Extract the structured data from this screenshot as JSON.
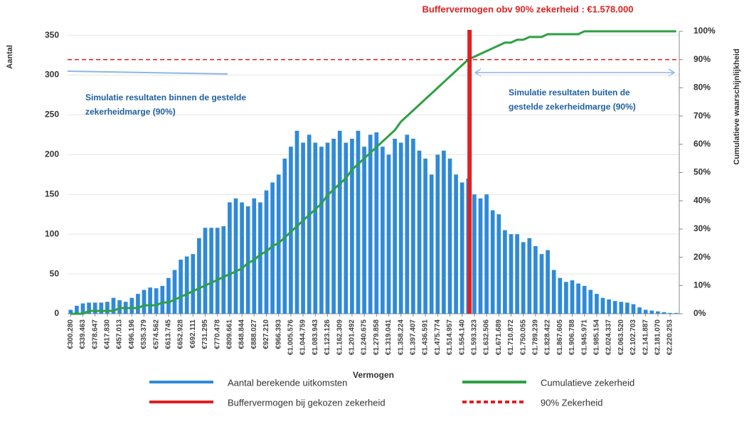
{
  "chart_data": {
    "type": "bar",
    "title": "Buffervermogen obv 90% zekerheid : €1.578.000",
    "x_label": "Vermogen",
    "y_label": "Aantal",
    "y2_label": "Cumulatieve waarschijnlijkheid",
    "categories": [
      "€300.280",
      null,
      "€339.463",
      null,
      "€378.647",
      null,
      "€417.830",
      null,
      "€457.013",
      null,
      "€496.196",
      null,
      "€535.379",
      null,
      "€574.562",
      null,
      "€613.745",
      null,
      "€652.928",
      null,
      "€692.111",
      null,
      "€731.295",
      null,
      "€770.478",
      null,
      "€809.661",
      null,
      "€848.844",
      null,
      "€888.027",
      null,
      "€927.210",
      null,
      "€966.393",
      null,
      "€1.005.576",
      null,
      "€1.044.759",
      null,
      "€1.083.943",
      null,
      "€1.123.126",
      null,
      "€1.162.309",
      null,
      "€1.201.492",
      null,
      "€1.240.675",
      null,
      "€1.279.858",
      null,
      "€1.319.041",
      null,
      "€1.358.224",
      null,
      "€1.397.407",
      null,
      "€1.436.591",
      null,
      "€1.475.774",
      null,
      "€1.514.957",
      null,
      "€1.554.140",
      null,
      "€1.593.323",
      null,
      "€1.632.506",
      null,
      "€1.671.689",
      null,
      "€1.710.872",
      null,
      "€1.750.055",
      null,
      "€1.789.239",
      null,
      "€1.828.422",
      null,
      "€1.867.605",
      null,
      "€1.906.788",
      null,
      "€1.945.971",
      null,
      "€1.985.154",
      null,
      "€2.024.337",
      null,
      "€2.063.520",
      null,
      "€2.102.703",
      null,
      "€2.141.887",
      null,
      "€2.181.070",
      null,
      "€2.220.253",
      null
    ],
    "series": [
      {
        "name": "Aantal berekende uitkomsten",
        "color": "#2f8ad8",
        "values": [
          5,
          10,
          13,
          14,
          14,
          14,
          15,
          20,
          17,
          15,
          20,
          25,
          30,
          33,
          32,
          35,
          45,
          55,
          68,
          72,
          75,
          95,
          108,
          108,
          108,
          110,
          140,
          145,
          140,
          135,
          145,
          140,
          155,
          165,
          175,
          195,
          210,
          230,
          215,
          225,
          215,
          210,
          215,
          220,
          230,
          215,
          220,
          230,
          210,
          225,
          228,
          210,
          200,
          220,
          215,
          225,
          220,
          205,
          195,
          175,
          200,
          205,
          195,
          175,
          165,
          170,
          150,
          145,
          150,
          130,
          125,
          105,
          100,
          100,
          90,
          95,
          85,
          75,
          80,
          55,
          45,
          40,
          42,
          38,
          35,
          30,
          25,
          20,
          18,
          16,
          15,
          14,
          12,
          8,
          5,
          4,
          3,
          2,
          1,
          1
        ]
      },
      {
        "name": "Cumulatieve zekerheid",
        "color": "#2ea043",
        "axis": "y2",
        "values": [
          0,
          0,
          0,
          1,
          1,
          1,
          1,
          1,
          2,
          2,
          2,
          2,
          3,
          3,
          3,
          4,
          4,
          5,
          6,
          7,
          8,
          9,
          10,
          11,
          12,
          13,
          14,
          15,
          16,
          18,
          19,
          21,
          22,
          24,
          25,
          27,
          29,
          31,
          33,
          35,
          37,
          39,
          42,
          44,
          46,
          48,
          51,
          53,
          55,
          57,
          59,
          61,
          63,
          65,
          68,
          70,
          72,
          74,
          76,
          78,
          80,
          82,
          84,
          86,
          88,
          90,
          91,
          92,
          93,
          94,
          95,
          96,
          96,
          97,
          97,
          98,
          98,
          98,
          99,
          99,
          99,
          99,
          99,
          99,
          100,
          100,
          100,
          100,
          100,
          100,
          100,
          100,
          100,
          100,
          100,
          100,
          100,
          100,
          100,
          100
        ]
      }
    ],
    "threshold": {
      "name": "Buffervermogen bij gekozen zekerheid",
      "value": 1578000,
      "color": "#e02020"
    },
    "reference_line": {
      "name": "90% Zekerheid",
      "value": 90,
      "axis": "y2",
      "color": "#e02020"
    },
    "annotations": [
      {
        "lines": [
          "Simulatie resultaten binnen de gestelde",
          "zekerheidmarge (90%)"
        ]
      },
      {
        "lines": [
          "Simulatie resultaten buiten de",
          "gestelde zekerheidmarge (90%)"
        ]
      }
    ],
    "ylim": [
      0,
      355
    ],
    "yticks": [
      0,
      50,
      100,
      150,
      200,
      250,
      300,
      350
    ],
    "y2lim": [
      0,
      100
    ],
    "y2ticks": [
      {
        "value": 0,
        "label": "0%"
      },
      {
        "value": 10,
        "label": "10%"
      },
      {
        "value": 20,
        "label": "20%"
      },
      {
        "value": 30,
        "label": "30%"
      },
      {
        "value": 40,
        "label": "40%"
      },
      {
        "value": 50,
        "label": "50%"
      },
      {
        "value": 60,
        "label": "60%"
      },
      {
        "value": 70,
        "label": "70%"
      },
      {
        "value": 80,
        "label": "80%"
      },
      {
        "value": 90,
        "label": "90%"
      },
      {
        "value": 100,
        "label": "100%"
      }
    ],
    "grid": true
  }
}
